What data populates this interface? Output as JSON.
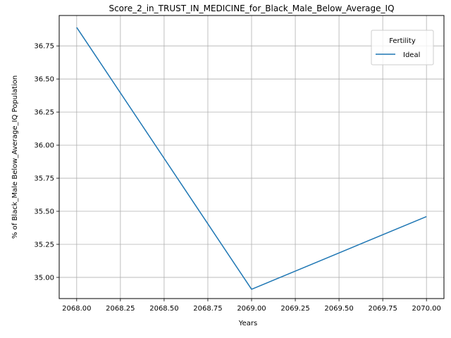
{
  "chart_data": {
    "type": "line",
    "title": "Score_2_in_TRUST_IN_MEDICINE_for_Black_Male_Below_Average_IQ",
    "xlabel": "Years",
    "ylabel": "% of Black_Male Below_Average_IQ Population",
    "xlim": [
      2067.9,
      2070.1
    ],
    "ylim": [
      34.84,
      36.98
    ],
    "x_ticks": [
      2068.0,
      2068.25,
      2068.5,
      2068.75,
      2069.0,
      2069.25,
      2069.5,
      2069.75,
      2070.0
    ],
    "x_tick_labels": [
      "2068.00",
      "2068.25",
      "2068.50",
      "2068.75",
      "2069.00",
      "2069.25",
      "2069.50",
      "2069.75",
      "2070.00"
    ],
    "y_ticks": [
      35.0,
      35.25,
      35.5,
      35.75,
      36.0,
      36.25,
      36.5,
      36.75
    ],
    "y_tick_labels": [
      "35.00",
      "35.25",
      "35.50",
      "35.75",
      "36.00",
      "36.25",
      "36.50",
      "36.75"
    ],
    "grid": true,
    "legend": {
      "title": "Fertility",
      "placement": "top-right"
    },
    "series": [
      {
        "name": "Ideal",
        "color": "#1f77b4",
        "x": [
          2068,
          2069,
          2070
        ],
        "y": [
          36.89,
          34.91,
          35.46
        ]
      }
    ]
  }
}
